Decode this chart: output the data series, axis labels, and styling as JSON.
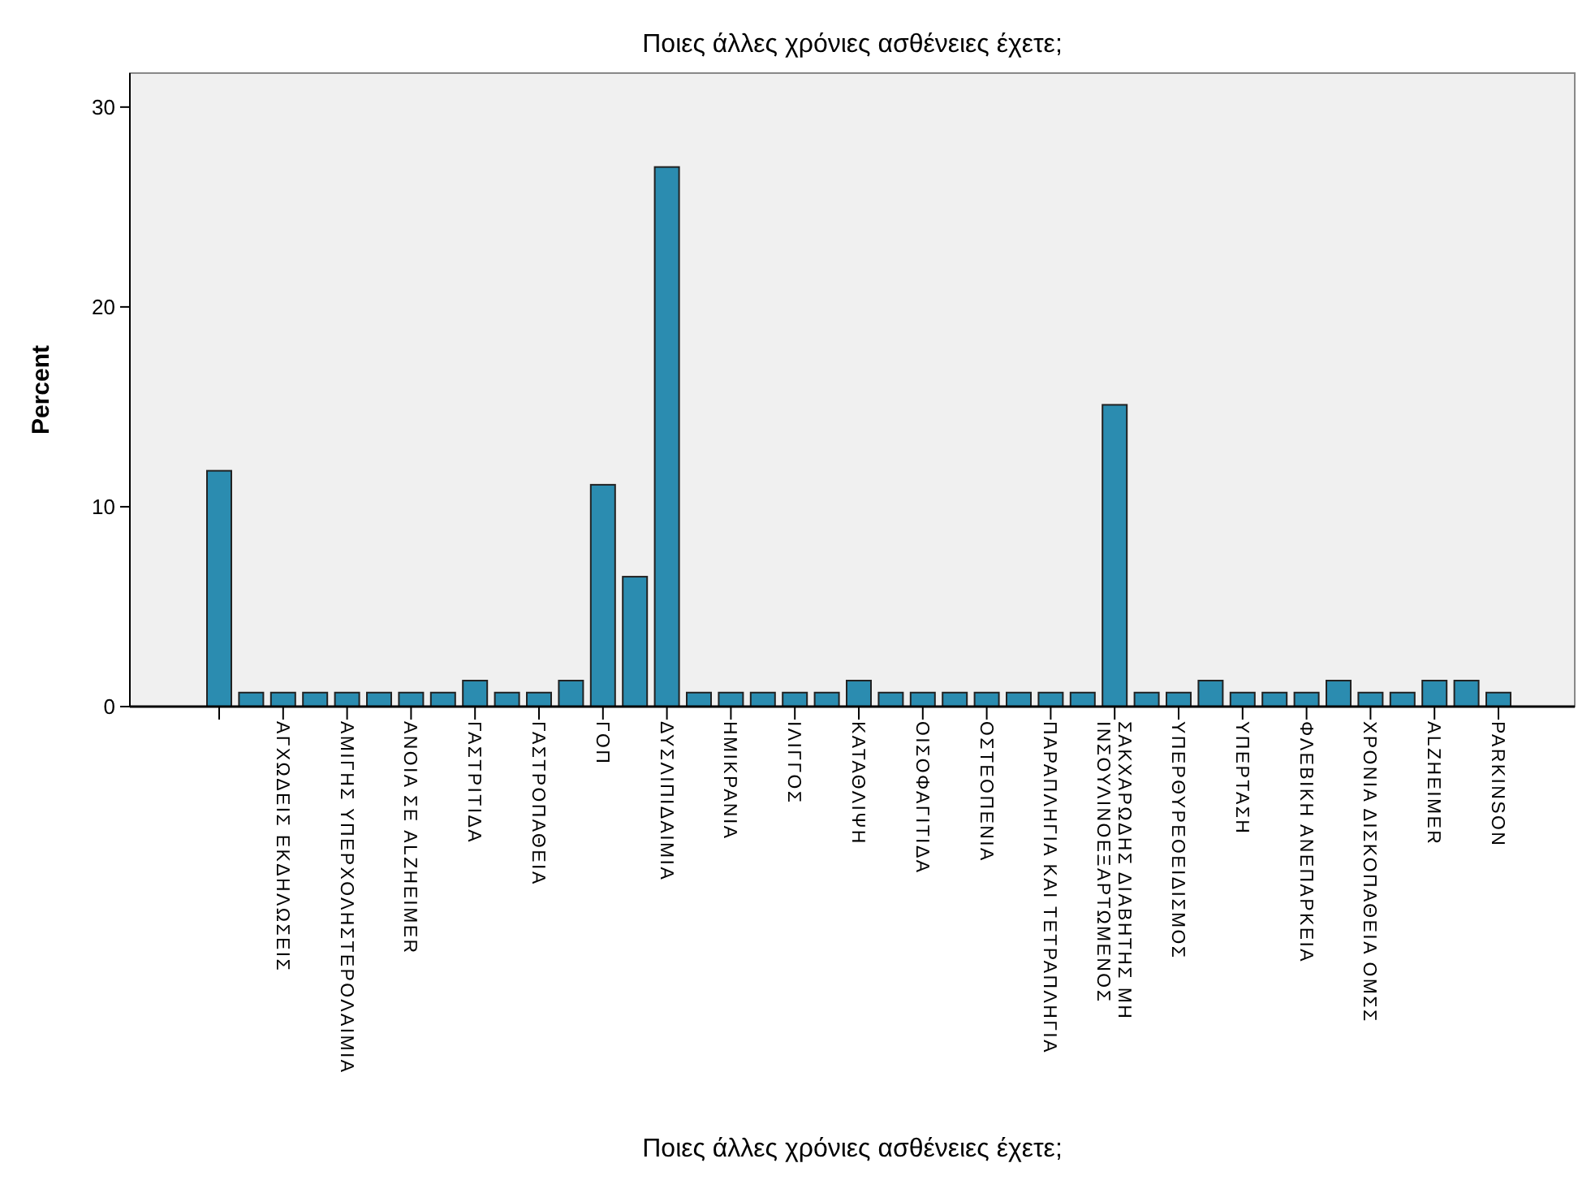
{
  "chart_data": {
    "type": "bar",
    "title": "Ποιες άλλες χρόνιες ασθένειες έχετε;",
    "xlabel": "Ποιες άλλες χρόνιες ασθένειες έχετε;",
    "ylabel": "Percent",
    "categories": [
      null,
      null,
      "ΑΓΧΩΔΕΙΣ ΕΚΔΗΛΩΣΕΙΣ",
      null,
      "ΑΜΙΓΗΣ ΥΠΕΡΧΟΛΗΣΤΕΡΟΛΑΙΜΙΑ",
      null,
      "ΑΝΟΙΑ ΣΕ ALZHEIMER",
      null,
      "ΓΑΣΤΡΙΤΙΔΑ",
      null,
      "ΓΑΣΤΡΟΠΑΘΕΙΑ",
      null,
      "ΓΟΠ",
      null,
      "ΔΥΣΛΙΠΙΔΑΙΜΙΑ",
      null,
      "ΗΜΙΚΡΑΝΙΑ",
      null,
      "ΙΛΙΓΓΟΣ",
      null,
      "ΚΑΤΑΘΛΙΨΗ",
      null,
      "ΟΙΣΟΦΑΓΙΤΙΔΑ",
      null,
      "ΟΣΤΕΟΠΕΝΙΑ",
      null,
      "ΠΑΡΑΠΛΗΓΙΑ ΚΑΙ ΤΕΤΡΑΠΛΗΓΙΑ",
      null,
      "ΣΑΚΧΑΡΩΔΗΣ ΔΙΑΒΗΤΗΣ ΜΗ ΙΝΣΟΥΛΙΝΟΕΞΑΡΤΩΜΕΝΟΣ",
      null,
      "ΥΠΕΡΘΥΡΕΟΕΙΔΙΣΜΟΣ",
      null,
      "ΥΠΕΡΤΑΣΗ",
      null,
      "ΦΛΕΒΙΚΗ ΑΝΕΠΑΡΚΕΙΑ",
      null,
      "ΧΡΟΝΙΑ ΔΙΣΚΟΠΑΘΕΙΑ ΟΜΣΣ",
      null,
      "ALZHEIMER",
      null,
      "PARKINSON"
    ],
    "values": [
      11.8,
      0.7,
      0.7,
      0.7,
      0.7,
      0.7,
      0.7,
      0.7,
      1.3,
      0.7,
      0.7,
      1.3,
      11.1,
      6.5,
      27.0,
      0.7,
      0.7,
      0.7,
      0.7,
      0.7,
      1.3,
      0.7,
      0.7,
      0.7,
      0.7,
      0.7,
      0.7,
      0.7,
      15.1,
      0.7,
      0.7,
      1.3,
      0.7,
      0.7,
      0.7,
      1.3,
      0.7,
      0.7,
      1.3,
      1.3,
      0.7
    ],
    "color": "#2b8cb0",
    "ylim": [
      0,
      31.7
    ],
    "yticks": [
      0,
      10,
      20,
      30
    ],
    "grid": false
  }
}
